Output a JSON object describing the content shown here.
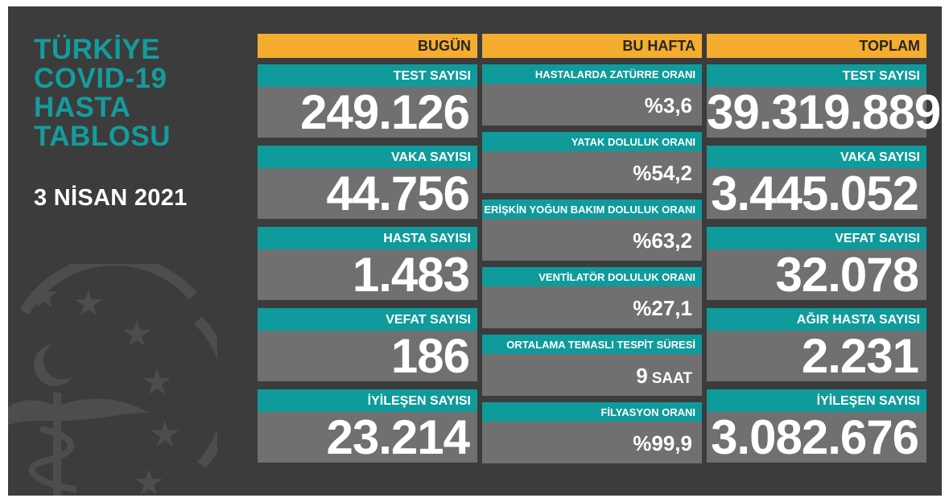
{
  "header": {
    "title_lines": [
      "TÜRKİYE",
      "COVID-19",
      "HASTA",
      "TABLOSU"
    ],
    "date": "3 NİSAN 2021"
  },
  "today": {
    "heading": "BUGÜN",
    "items": [
      {
        "label": "TEST SAYISI",
        "value": "249.126"
      },
      {
        "label": "VAKA SAYISI",
        "value": "44.756"
      },
      {
        "label": "HASTA SAYISI",
        "value": "1.483"
      },
      {
        "label": "VEFAT SAYISI",
        "value": "186"
      },
      {
        "label": "İYİLEŞEN SAYISI",
        "value": "23.214"
      }
    ]
  },
  "week": {
    "heading": "BU HAFTA",
    "items": [
      {
        "label": "HASTALARDA ZATÜRRE ORANI",
        "value": "%3,6"
      },
      {
        "label": "YATAK DOLULUK ORANI",
        "value": "%54,2"
      },
      {
        "label": "ERİŞKİN YOĞUN BAKIM DOLULUK ORANI",
        "value": "%63,2"
      },
      {
        "label": "VENTİLATÖR DOLULUK ORANI",
        "value": "%27,1"
      },
      {
        "label": "ORTALAMA TEMASLI TESPİT SÜRESİ",
        "value": "9",
        "unit": "SAAT"
      },
      {
        "label": "FİLYASYON ORANI",
        "value": "%99,9"
      }
    ]
  },
  "total": {
    "heading": "TOPLAM",
    "items": [
      {
        "label": "TEST SAYISI",
        "value": "39.319.889"
      },
      {
        "label": "VAKA SAYISI",
        "value": "3.445.052"
      },
      {
        "label": "VEFAT SAYISI",
        "value": "32.078"
      },
      {
        "label": "AĞIR HASTA SAYISI",
        "value": "2.231"
      },
      {
        "label": "İYİLEŞEN SAYISI",
        "value": "3.082.676"
      }
    ]
  },
  "colors": {
    "background": "#3c3c3c",
    "title": "#149c9c",
    "header_bar": "#f5ad2f",
    "label_bar": "#0f9b9b",
    "value_box": "#707070"
  },
  "icons": [
    "ministry-emblem-icon"
  ]
}
